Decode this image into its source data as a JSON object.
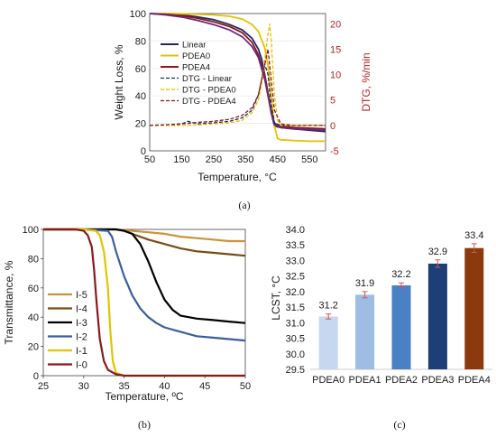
{
  "chart_data": [
    {
      "id": "a",
      "type": "line",
      "panel_label": "(a)",
      "xlabel": "Temperature, °C",
      "ylabel": "Weight Loss, %",
      "y2label": "DTG, %/min",
      "xlim": [
        50,
        600
      ],
      "ylim": [
        0,
        100
      ],
      "y2lim": [
        -5,
        22
      ],
      "xticks": [
        50,
        150,
        250,
        350,
        450,
        550
      ],
      "yticks": [
        0,
        20,
        40,
        60,
        80,
        100
      ],
      "y2ticks": [
        -5,
        0,
        5,
        10,
        15,
        20
      ],
      "y2_color": "#b22222",
      "legend_position": "left",
      "series": [
        {
          "name": "Linear",
          "axis": "left",
          "style": "solid",
          "color": "#1f2a63",
          "x": [
            50,
            100,
            150,
            200,
            250,
            300,
            340,
            370,
            390,
            400,
            410,
            420,
            430,
            440,
            460,
            500,
            550,
            600
          ],
          "y": [
            100,
            99.5,
            99,
            97.5,
            95.5,
            92,
            88,
            82,
            74,
            67,
            55,
            42,
            28,
            18,
            17,
            16,
            15,
            14
          ]
        },
        {
          "name": "PDEA0",
          "axis": "left",
          "style": "solid",
          "color": "#e6c200",
          "x": [
            50,
            100,
            150,
            200,
            250,
            300,
            340,
            370,
            390,
            410,
            420,
            430,
            440,
            450,
            460,
            500,
            550,
            600
          ],
          "y": [
            100,
            100,
            99.8,
            99.5,
            99,
            98,
            96,
            92,
            87,
            75,
            62,
            40,
            18,
            9,
            8,
            7.5,
            7,
            7
          ]
        },
        {
          "name": "PDEA4",
          "axis": "left",
          "style": "solid",
          "color": "#8b1a1a",
          "x": [
            50,
            100,
            150,
            200,
            250,
            300,
            340,
            370,
            390,
            410,
            420,
            430,
            440,
            460,
            500,
            550,
            600
          ],
          "y": [
            100,
            99.5,
            98.5,
            96.5,
            94,
            90.5,
            86,
            79,
            70,
            55,
            42,
            29,
            20,
            18,
            17,
            16.5,
            16
          ]
        },
        {
          "name": "",
          "axis": "left",
          "style": "solid",
          "color": "#6a2a7a",
          "x": [
            50,
            100,
            150,
            200,
            250,
            300,
            340,
            370,
            390,
            410,
            420,
            430,
            440,
            460,
            500,
            550,
            600
          ],
          "y": [
            100,
            99,
            97.5,
            95,
            92,
            88,
            83,
            76,
            68,
            52,
            40,
            28,
            19,
            17,
            16,
            15.5,
            15
          ]
        },
        {
          "name": "DTG - Linear",
          "axis": "right",
          "style": "dashed",
          "color": "#1f2a63",
          "x": [
            50,
            100,
            150,
            170,
            200,
            250,
            300,
            340,
            370,
            390,
            400,
            410,
            420,
            430,
            440,
            460,
            500,
            550,
            600
          ],
          "y": [
            0,
            0.1,
            0.3,
            0.8,
            0.3,
            0.5,
            0.8,
            1.5,
            3,
            6,
            9,
            12,
            10,
            4,
            0.5,
            0,
            0,
            0,
            0
          ]
        },
        {
          "name": "DTG - PDEA0",
          "axis": "right",
          "style": "dashed",
          "color": "#e6c200",
          "x": [
            50,
            100,
            150,
            200,
            250,
            300,
            340,
            370,
            390,
            400,
            410,
            420,
            425,
            430,
            440,
            450,
            460,
            500,
            550,
            600
          ],
          "y": [
            0,
            0,
            0,
            0.1,
            0.3,
            0.5,
            1,
            2.5,
            5,
            8,
            13,
            18,
            20,
            17,
            6,
            1,
            0,
            0,
            0,
            0
          ]
        },
        {
          "name": "DTG - PDEA4",
          "axis": "right",
          "style": "dashed",
          "color": "#8b1a1a",
          "x": [
            50,
            100,
            150,
            200,
            250,
            300,
            340,
            370,
            390,
            400,
            410,
            420,
            430,
            440,
            460,
            500,
            550,
            600
          ],
          "y": [
            0,
            0.1,
            0.3,
            0.6,
            0.8,
            1.2,
            2,
            3.5,
            6,
            9,
            12,
            15,
            9,
            3,
            0.3,
            0,
            0,
            0
          ]
        }
      ]
    },
    {
      "id": "b",
      "type": "line",
      "panel_label": "(b)",
      "xlabel": "Temperature, ºC",
      "ylabel": "Transmittance, %",
      "xlim": [
        25,
        50
      ],
      "ylim": [
        0,
        100
      ],
      "xticks": [
        25,
        30,
        35,
        40,
        45,
        50
      ],
      "yticks": [
        0,
        20,
        40,
        60,
        80,
        100
      ],
      "legend_position": "left",
      "series": [
        {
          "name": "I-5",
          "color": "#c9923a",
          "x": [
            25,
            30,
            33,
            34,
            35,
            36,
            38,
            40,
            42,
            44,
            46,
            48,
            50
          ],
          "y": [
            100,
            100,
            100,
            100,
            99.5,
            99,
            98,
            97,
            95,
            94,
            93,
            92,
            92
          ]
        },
        {
          "name": "I-4",
          "color": "#7a4b12",
          "x": [
            25,
            30,
            33,
            34,
            35,
            36,
            37,
            38,
            40,
            42,
            44,
            46,
            48,
            50
          ],
          "y": [
            100,
            100,
            100,
            100,
            99,
            97,
            95,
            93,
            90,
            87,
            85,
            84,
            83,
            82
          ]
        },
        {
          "name": "I-3",
          "color": "#000000",
          "x": [
            25,
            30,
            33,
            34,
            35,
            36,
            37,
            38,
            39,
            40,
            41,
            42,
            43,
            44,
            46,
            48,
            50
          ],
          "y": [
            100,
            100,
            100,
            100,
            99,
            97,
            90,
            78,
            64,
            52,
            45,
            41,
            40,
            39,
            38,
            37,
            36
          ]
        },
        {
          "name": "I-2",
          "color": "#3b5d9e",
          "x": [
            25,
            30,
            33,
            33.5,
            34,
            35,
            36,
            37,
            38,
            39,
            40,
            42,
            44,
            46,
            48,
            50
          ],
          "y": [
            100,
            100,
            99,
            95,
            85,
            68,
            55,
            46,
            40,
            36,
            33,
            30,
            27,
            26,
            25,
            24
          ]
        },
        {
          "name": "I-1",
          "color": "#e6c200",
          "x": [
            25,
            30,
            31.5,
            32,
            32.5,
            33,
            33.3,
            33.6,
            34,
            35,
            36,
            40,
            45,
            50
          ],
          "y": [
            100,
            100,
            99,
            96,
            85,
            60,
            30,
            10,
            2,
            0,
            0,
            0,
            0,
            0
          ]
        },
        {
          "name": "I-0",
          "color": "#8b1a1a",
          "x": [
            25,
            29,
            30,
            30.5,
            31,
            31.3,
            31.6,
            32,
            32.5,
            33,
            34,
            35,
            40,
            45,
            50
          ],
          "y": [
            100,
            100,
            99,
            96,
            88,
            72,
            50,
            25,
            10,
            4,
            1,
            0,
            0,
            0,
            0
          ]
        }
      ]
    },
    {
      "id": "c",
      "type": "bar",
      "panel_label": "(c)",
      "ylabel": "LCST, °C",
      "ylim": [
        29.5,
        34.0
      ],
      "yticks": [
        "29.5",
        "30.0",
        "30.5",
        "31.0",
        "31.5",
        "32.0",
        "32.5",
        "33.0",
        "33.5",
        "34.0"
      ],
      "categories": [
        "PDEA0",
        "PDEA1",
        "PDEA2",
        "PDEA3",
        "PDEA4"
      ],
      "values": [
        31.2,
        31.9,
        32.2,
        32.9,
        33.4
      ],
      "value_labels": [
        "31.2",
        "31.9",
        "32.2",
        "32.9",
        "33.4"
      ],
      "errors": [
        0.08,
        0.1,
        0.08,
        0.12,
        0.14
      ],
      "bar_colors": [
        "#c5d8ef",
        "#9dbde2",
        "#4a80c4",
        "#1e3f75",
        "#8b3a0e"
      ],
      "error_color": "#d9534f"
    }
  ]
}
